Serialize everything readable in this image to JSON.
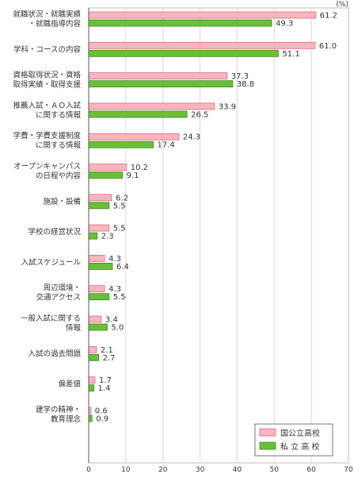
{
  "chart_data": {
    "type": "bar",
    "orientation": "horizontal",
    "unit": "(%)",
    "categories": [
      [
        "就職状況・就職実績",
        "・就職指導内容"
      ],
      [
        "学科・コースの内容"
      ],
      [
        "資格取得状況・資格",
        "取得実績・取得支援"
      ],
      [
        "推薦入試・ＡＯ入試",
        "に関する情報"
      ],
      [
        "学費・学費支援制度",
        "に関する情報"
      ],
      [
        "オープンキャンパス",
        "の日程や内容"
      ],
      [
        "施設・設備"
      ],
      [
        "学校の経営状況"
      ],
      [
        "入試スケジュール"
      ],
      [
        "周辺環境・",
        "交通アクセス"
      ],
      [
        "一般入試に関する",
        "情報"
      ],
      [
        "入試の過去問題"
      ],
      [
        "偏差値"
      ],
      [
        "建学の精神・",
        "教育理念"
      ]
    ],
    "series": [
      {
        "name": "国公立高校",
        "color": "#f7b6be",
        "stroke": "#e06b7d",
        "values": [
          61.2,
          61.0,
          37.3,
          33.9,
          24.3,
          10.2,
          6.2,
          5.5,
          4.3,
          4.3,
          3.4,
          2.1,
          1.7,
          0.6
        ],
        "labels": [
          "61.2",
          "61.0",
          "37.3",
          "33.9",
          "24.3",
          "10.2",
          "6.2",
          "5.5",
          "4.3",
          "4.3",
          "3.4",
          "2.1",
          "1.7",
          "0.6"
        ]
      },
      {
        "name": "私 立 高 校",
        "color": "#6abf3a",
        "stroke": "#3e8a1c",
        "values": [
          49.3,
          51.1,
          38.8,
          26.5,
          17.4,
          9.1,
          5.5,
          2.3,
          6.4,
          5.5,
          5.0,
          2.7,
          1.4,
          0.9
        ],
        "labels": [
          "49.3",
          "51.1",
          "38.8",
          "26.5",
          "17.4",
          "9.1",
          "5.5",
          "2.3",
          "6.4",
          "5.5",
          "5.0",
          "2.7",
          "1.4",
          "0.9"
        ]
      }
    ],
    "xlim": [
      0,
      70
    ],
    "xticks": [
      "0",
      "10",
      "20",
      "30",
      "40",
      "50",
      "60",
      "70"
    ],
    "grid": true,
    "legend_position": "bottom-right"
  }
}
